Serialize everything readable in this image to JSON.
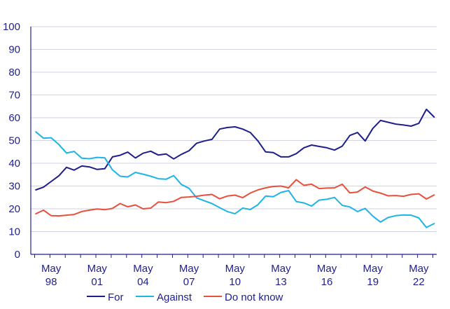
{
  "chart_data": {
    "type": "line",
    "title": "",
    "xlabel": "",
    "ylabel": "",
    "ylim": [
      0,
      100
    ],
    "yticks": [
      0,
      10,
      20,
      30,
      40,
      50,
      60,
      70,
      80,
      90,
      100
    ],
    "grid": true,
    "legend_position": "bottom",
    "x": [
      1997.33,
      1997.83,
      1998.33,
      1998.83,
      1999.33,
      1999.83,
      2000.33,
      2000.83,
      2001.33,
      2001.83,
      2002.33,
      2002.83,
      2003.33,
      2003.83,
      2004.33,
      2004.83,
      2005.33,
      2005.83,
      2006.33,
      2006.83,
      2007.33,
      2007.83,
      2008.33,
      2008.83,
      2009.33,
      2009.83,
      2010.33,
      2010.83,
      2011.33,
      2011.83,
      2012.33,
      2012.83,
      2013.33,
      2013.83,
      2014.33,
      2014.83,
      2015.33,
      2015.83,
      2016.33,
      2016.83,
      2017.33,
      2017.83,
      2018.33,
      2018.83,
      2019.33,
      2019.83,
      2020.33,
      2020.83,
      2021.33,
      2021.83,
      2022.33,
      2022.83,
      2023.33
    ],
    "x_tick_labels": [
      {
        "x": 1998.33,
        "line1": "May",
        "line2": "98"
      },
      {
        "x": 2001.33,
        "line1": "May",
        "line2": "01"
      },
      {
        "x": 2004.33,
        "line1": "May",
        "line2": "04"
      },
      {
        "x": 2007.33,
        "line1": "May",
        "line2": "07"
      },
      {
        "x": 2010.33,
        "line1": "May",
        "line2": "10"
      },
      {
        "x": 2013.33,
        "line1": "May",
        "line2": "13"
      },
      {
        "x": 2016.33,
        "line1": "May",
        "line2": "16"
      },
      {
        "x": 2019.33,
        "line1": "May",
        "line2": "19"
      },
      {
        "x": 2022.33,
        "line1": "May",
        "line2": "22"
      }
    ],
    "series": [
      {
        "name": "For",
        "color": "#1e1e8c",
        "values": [
          28.3,
          29.5,
          32.0,
          34.5,
          38.2,
          37.0,
          38.8,
          38.4,
          37.3,
          37.6,
          42.8,
          43.5,
          44.9,
          42.3,
          44.4,
          45.3,
          43.6,
          44.1,
          41.9,
          43.9,
          45.5,
          48.8,
          49.8,
          50.5,
          55.0,
          55.7,
          56.0,
          55.0,
          53.5,
          49.8,
          45.0,
          44.7,
          42.8,
          42.8,
          44.2,
          46.8,
          48.0,
          47.4,
          46.8,
          45.8,
          47.5,
          52.2,
          53.5,
          49.8,
          55.3,
          58.8,
          58.0,
          57.2,
          56.8,
          56.3,
          57.5,
          63.7,
          60.3
        ]
      },
      {
        "name": "Against",
        "color": "#1eb4e6",
        "values": [
          53.8,
          51.0,
          51.2,
          48.2,
          44.5,
          45.2,
          42.2,
          42.0,
          42.6,
          42.4,
          37.1,
          34.3,
          34.0,
          36.0,
          35.2,
          34.3,
          33.2,
          33.0,
          34.6,
          30.7,
          29.0,
          24.8,
          23.5,
          22.3,
          20.5,
          18.8,
          17.8,
          20.3,
          19.7,
          21.8,
          25.6,
          25.3,
          27.2,
          28.0,
          23.2,
          22.6,
          21.2,
          23.8,
          24.2,
          25.0,
          21.5,
          20.8,
          18.8,
          20.2,
          16.8,
          14.2,
          16.2,
          17.0,
          17.3,
          17.2,
          16.0,
          11.8,
          13.5
        ]
      },
      {
        "name": "Do not know",
        "color": "#e6503c",
        "values": [
          17.8,
          19.4,
          17.0,
          16.9,
          17.2,
          17.5,
          18.8,
          19.4,
          19.9,
          19.6,
          20.2,
          22.3,
          20.9,
          21.7,
          20.0,
          20.3,
          23.0,
          22.7,
          23.3,
          25.0,
          25.2,
          25.5,
          26.0,
          26.3,
          24.4,
          25.6,
          26.0,
          24.9,
          26.9,
          28.3,
          29.2,
          29.8,
          30.0,
          29.2,
          32.8,
          30.3,
          30.8,
          28.9,
          29.1,
          29.2,
          30.8,
          27.0,
          27.4,
          29.6,
          27.8,
          26.9,
          25.7,
          25.8,
          25.5,
          26.3,
          26.6,
          24.3,
          26.1
        ]
      }
    ]
  }
}
